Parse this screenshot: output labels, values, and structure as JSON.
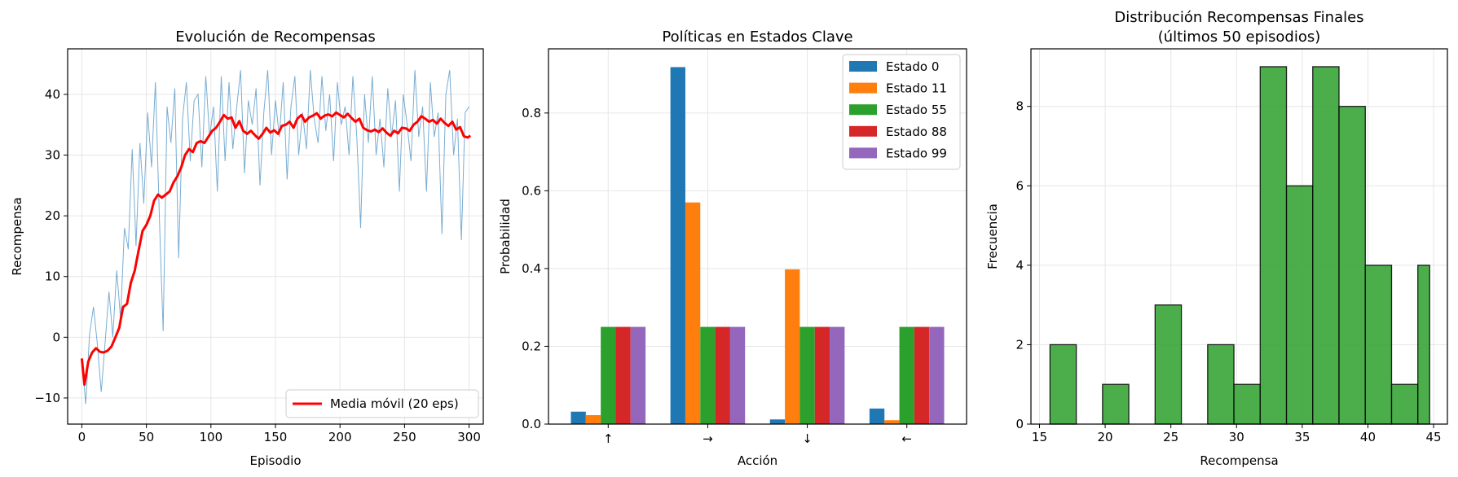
{
  "chart_data": [
    {
      "type": "line",
      "title": "Evolución de Recompensas",
      "xlabel": "Episodio",
      "ylabel": "Recompensa",
      "xlim": [
        -11,
        311
      ],
      "ylim": [
        -14.3,
        47.5
      ],
      "xticks": [
        0,
        50,
        100,
        150,
        200,
        250,
        300
      ],
      "yticks": [
        -10,
        0,
        10,
        20,
        30,
        40
      ],
      "grid": true,
      "legend_position": "lower-right",
      "colors": {
        "raw": "#1f77b4",
        "moving_average": "#ff0000"
      },
      "raw_series": {
        "x_start": 0,
        "anchors": [
          [
            0,
            -3.5
          ],
          [
            3,
            -11
          ],
          [
            6,
            0.5
          ],
          [
            9,
            5
          ],
          [
            12,
            -1
          ],
          [
            15,
            -9
          ],
          [
            18,
            -1
          ],
          [
            21,
            7.5
          ],
          [
            24,
            0
          ],
          [
            27,
            11
          ],
          [
            30,
            3
          ],
          [
            33,
            18
          ],
          [
            36,
            14.5
          ],
          [
            39,
            31
          ],
          [
            42,
            15
          ],
          [
            45,
            32
          ],
          [
            48,
            22
          ],
          [
            51,
            37
          ],
          [
            54,
            28
          ],
          [
            57,
            42
          ],
          [
            60,
            20
          ],
          [
            63,
            1
          ],
          [
            66,
            38
          ],
          [
            69,
            32
          ],
          [
            72,
            41
          ],
          [
            75,
            13
          ],
          [
            78,
            36
          ],
          [
            81,
            42
          ],
          [
            84,
            29
          ],
          [
            87,
            39
          ],
          [
            90,
            40
          ],
          [
            93,
            28
          ],
          [
            96,
            43
          ],
          [
            99,
            33
          ],
          [
            102,
            38
          ],
          [
            105,
            24
          ],
          [
            108,
            43
          ],
          [
            111,
            29
          ],
          [
            114,
            42
          ],
          [
            117,
            31
          ],
          [
            120,
            38
          ],
          [
            123,
            44
          ],
          [
            126,
            27
          ],
          [
            129,
            39
          ],
          [
            132,
            35
          ],
          [
            135,
            41
          ],
          [
            138,
            25
          ],
          [
            141,
            37
          ],
          [
            144,
            44
          ],
          [
            147,
            30
          ],
          [
            150,
            39
          ],
          [
            153,
            33
          ],
          [
            156,
            42
          ],
          [
            159,
            26
          ],
          [
            162,
            38
          ],
          [
            165,
            43
          ],
          [
            168,
            30
          ],
          [
            171,
            37
          ],
          [
            174,
            31
          ],
          [
            177,
            44
          ],
          [
            180,
            36
          ],
          [
            183,
            32
          ],
          [
            186,
            43
          ],
          [
            189,
            34
          ],
          [
            192,
            40
          ],
          [
            195,
            29
          ],
          [
            198,
            42
          ],
          [
            201,
            35
          ],
          [
            204,
            38
          ],
          [
            207,
            30
          ],
          [
            210,
            43
          ],
          [
            213,
            33
          ],
          [
            216,
            18
          ],
          [
            219,
            40
          ],
          [
            222,
            32
          ],
          [
            225,
            43
          ],
          [
            228,
            30
          ],
          [
            231,
            36
          ],
          [
            234,
            28
          ],
          [
            237,
            41
          ],
          [
            240,
            33
          ],
          [
            243,
            39
          ],
          [
            246,
            24
          ],
          [
            249,
            40
          ],
          [
            252,
            35
          ],
          [
            255,
            29
          ],
          [
            258,
            44
          ],
          [
            261,
            33
          ],
          [
            264,
            38
          ],
          [
            267,
            24
          ],
          [
            270,
            42
          ],
          [
            273,
            33
          ],
          [
            276,
            37
          ],
          [
            279,
            17
          ],
          [
            282,
            40
          ],
          [
            285,
            44
          ],
          [
            288,
            30
          ],
          [
            291,
            36
          ],
          [
            294,
            16
          ],
          [
            297,
            37
          ],
          [
            300,
            38
          ]
        ]
      },
      "series": [
        {
          "name": "Media móvil (20 eps)",
          "anchors": [
            [
              0,
              -3.5
            ],
            [
              2,
              -7.8
            ],
            [
              5,
              -4
            ],
            [
              8,
              -2.5
            ],
            [
              11,
              -1.8
            ],
            [
              14,
              -2.4
            ],
            [
              17,
              -2.5
            ],
            [
              20,
              -2.2
            ],
            [
              23,
              -1.5
            ],
            [
              26,
              0
            ],
            [
              29,
              1.6
            ],
            [
              32,
              5
            ],
            [
              35,
              5.5
            ],
            [
              38,
              9
            ],
            [
              41,
              11
            ],
            [
              44,
              14.3
            ],
            [
              47,
              17.5
            ],
            [
              50,
              18.5
            ],
            [
              53,
              20
            ],
            [
              56,
              22.5
            ],
            [
              59,
              23.5
            ],
            [
              62,
              23
            ],
            [
              65,
              23.5
            ],
            [
              68,
              24
            ],
            [
              71,
              25.5
            ],
            [
              74,
              26.5
            ],
            [
              77,
              28
            ],
            [
              80,
              30
            ],
            [
              83,
              31
            ],
            [
              86,
              30.5
            ],
            [
              89,
              32
            ],
            [
              92,
              32.3
            ],
            [
              95,
              32
            ],
            [
              98,
              33
            ],
            [
              101,
              34
            ],
            [
              104,
              34.5
            ],
            [
              107,
              35.5
            ],
            [
              110,
              36.6
            ],
            [
              113,
              36
            ],
            [
              116,
              36.2
            ],
            [
              119,
              34.5
            ],
            [
              122,
              35.6
            ],
            [
              125,
              34
            ],
            [
              128,
              33.5
            ],
            [
              131,
              34
            ],
            [
              134,
              33.3
            ],
            [
              137,
              32.7
            ],
            [
              140,
              33.5
            ],
            [
              143,
              34.5
            ],
            [
              146,
              33.7
            ],
            [
              149,
              34.1
            ],
            [
              152,
              33.5
            ],
            [
              155,
              34.8
            ],
            [
              158,
              35
            ],
            [
              161,
              35.5
            ],
            [
              164,
              34.5
            ],
            [
              167,
              36
            ],
            [
              170,
              36.6
            ],
            [
              173,
              35.5
            ],
            [
              176,
              36.2
            ],
            [
              179,
              36.5
            ],
            [
              182,
              36.9
            ],
            [
              185,
              36
            ],
            [
              188,
              36.5
            ],
            [
              191,
              36.7
            ],
            [
              194,
              36.4
            ],
            [
              197,
              37
            ],
            [
              200,
              36.6
            ],
            [
              203,
              36.2
            ],
            [
              206,
              36.8
            ],
            [
              209,
              36.1
            ],
            [
              212,
              35.5
            ],
            [
              215,
              36
            ],
            [
              218,
              34.5
            ],
            [
              221,
              34.1
            ],
            [
              224,
              33.9
            ],
            [
              227,
              34.2
            ],
            [
              230,
              33.8
            ],
            [
              233,
              34.4
            ],
            [
              236,
              33.7
            ],
            [
              239,
              33.2
            ],
            [
              242,
              34
            ],
            [
              245,
              33.6
            ],
            [
              248,
              34.5
            ],
            [
              251,
              34.4
            ],
            [
              254,
              34
            ],
            [
              257,
              35
            ],
            [
              260,
              35.5
            ],
            [
              263,
              36.4
            ],
            [
              266,
              36
            ],
            [
              269,
              35.5
            ],
            [
              272,
              35.8
            ],
            [
              275,
              35.2
            ],
            [
              278,
              36
            ],
            [
              281,
              35.3
            ],
            [
              284,
              34.8
            ],
            [
              287,
              35.5
            ],
            [
              290,
              34.2
            ],
            [
              293,
              34.6
            ],
            [
              296,
              33.1
            ],
            [
              299,
              32.9
            ],
            [
              301,
              33.2
            ]
          ]
        }
      ]
    },
    {
      "type": "bar",
      "title": "Políticas en Estados Clave",
      "xlabel": "Acción",
      "ylabel": "Probabilidad",
      "categories": [
        "↑",
        "→",
        "↓",
        "←"
      ],
      "ylim": [
        0,
        0.965
      ],
      "yticks": [
        0.0,
        0.2,
        0.4,
        0.6,
        0.8
      ],
      "grid": true,
      "legend_position": "top-right",
      "series": [
        {
          "name": "Estado 0",
          "color": "#1f77b4",
          "values": [
            0.032,
            0.918,
            0.012,
            0.04
          ]
        },
        {
          "name": "Estado 11",
          "color": "#ff7f0e",
          "values": [
            0.023,
            0.57,
            0.398,
            0.01
          ]
        },
        {
          "name": "Estado 55",
          "color": "#2ca02c",
          "values": [
            0.25,
            0.25,
            0.25,
            0.25
          ]
        },
        {
          "name": "Estado 88",
          "color": "#d62728",
          "values": [
            0.25,
            0.25,
            0.25,
            0.25
          ]
        },
        {
          "name": "Estado 99",
          "color": "#9467bd",
          "values": [
            0.25,
            0.25,
            0.25,
            0.25
          ]
        }
      ]
    },
    {
      "type": "bar",
      "title": "Distribución Recompensas Finales\n(últimos 50 episodios)",
      "title_lines": [
        "Distribución Recompensas Finales",
        "(últimos 50 episodios)"
      ],
      "xlabel": "Recompensa",
      "ylabel": "Frecuencia",
      "xlim": [
        14.35,
        46.05
      ],
      "ylim": [
        0,
        9.45
      ],
      "xticks": [
        15,
        20,
        25,
        30,
        35,
        40,
        45
      ],
      "yticks": [
        0,
        2,
        4,
        6,
        8
      ],
      "grid": true,
      "color": "#2ca02c",
      "bin_edges": [
        15.8,
        17.8,
        19.8,
        21.8,
        23.8,
        25.8,
        27.8,
        29.8,
        31.8,
        33.8,
        35.8,
        37.8,
        39.8,
        41.8,
        43.8,
        44.7
      ],
      "values": [
        2,
        0,
        1,
        0,
        3,
        0,
        2,
        1,
        9,
        6,
        9,
        8,
        4,
        1,
        4
      ]
    }
  ]
}
